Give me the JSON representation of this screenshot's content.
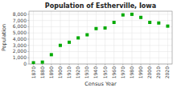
{
  "chart_data": {
    "type": "scatter",
    "title": "Population of Estherville, Iowa",
    "xlabel": "Census Year",
    "ylabel": "Population",
    "x": [
      1870,
      1880,
      1890,
      1900,
      1910,
      1920,
      1930,
      1940,
      1950,
      1960,
      1970,
      1980,
      1990,
      2000,
      2010,
      2020
    ],
    "values": [
      200,
      300,
      1500,
      3000,
      3500,
      4200,
      4700,
      5700,
      5800,
      6700,
      7900,
      8000,
      7500,
      6700,
      6600,
      6100
    ],
    "color": "#00aa00",
    "marker": "square",
    "xlim": [
      1865,
      2025
    ],
    "ylim": [
      0,
      8500
    ],
    "xticks": [
      1870,
      1880,
      1890,
      1900,
      1910,
      1920,
      1930,
      1940,
      1950,
      1960,
      1970,
      1980,
      1990,
      2000,
      2010,
      2020
    ],
    "yticks": [
      0,
      {
        "value": 1000,
        "label": "1,000"
      },
      {
        "value": 2000,
        "label": "2,000"
      },
      {
        "value": 3000,
        "label": "3,000"
      },
      {
        "value": 4000,
        "label": "4,000"
      },
      {
        "value": 5000,
        "label": "5,000"
      },
      {
        "value": 6000,
        "label": "6,000"
      },
      {
        "value": 7000,
        "label": "7,000"
      },
      {
        "value": 8000,
        "label": "8,000"
      }
    ],
    "grid": true
  }
}
